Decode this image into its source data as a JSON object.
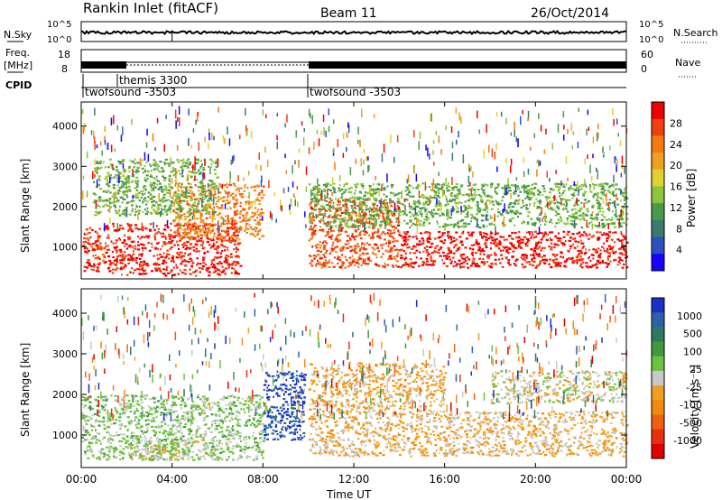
{
  "header": {
    "station": "Rankin Inlet (fitACF)",
    "beam": "Beam 11",
    "date": "26/Oct/2014"
  },
  "noise_panel": {
    "left_label": "N.Sky",
    "right_label": "N.Search",
    "left_ticks": [
      "10^5",
      "10^0"
    ],
    "right_ticks": [
      "10^5",
      "10^0"
    ]
  },
  "freq_panel": {
    "left_label_1": "Freq.",
    "left_label_2": "[MHz]",
    "left_ticks": [
      "18",
      "8"
    ],
    "right_label": "Nave",
    "right_ticks": [
      "60",
      "0"
    ]
  },
  "cpid_panel": {
    "label": "CPID",
    "segments": [
      {
        "name": "twofsound -3503",
        "start_hr": 0.0,
        "end_hr": 1.9
      },
      {
        "name": "themis 3300",
        "start_hr": 1.9,
        "end_hr": 10.0
      },
      {
        "name": "twofsound -3503",
        "start_hr": 10.0,
        "end_hr": 24.0
      }
    ]
  },
  "power_panel": {
    "ylabel": "Slant Range [km]",
    "yticks": [
      "1000",
      "2000",
      "3000",
      "4000"
    ],
    "colorbar_label": "Power [dB]",
    "colorbar_ticks": [
      "4",
      "8",
      "12",
      "16",
      "20",
      "24",
      "28"
    ],
    "colorbar_colors": [
      "#1a00ff",
      "#2f4fbf",
      "#3b7a70",
      "#4a9a4a",
      "#8cc43c",
      "#e0d030",
      "#f0a020",
      "#f27a10",
      "#f04010",
      "#ee0000"
    ]
  },
  "velocity_panel": {
    "ylabel": "Slant Range [km]",
    "yticks": [
      "1000",
      "2000",
      "3000",
      "4000"
    ],
    "colorbar_label": "Velocity [m s⁻¹]",
    "colorbar_ticks": [
      "1000",
      "500",
      "100",
      "25",
      "-25",
      "-100",
      "-500",
      "-1000"
    ],
    "colorbar_colors": [
      "#1a30c8",
      "#2e60a8",
      "#2e7a60",
      "#3f9a3f",
      "#6cc23c",
      "#c8c8c8",
      "#f0a020",
      "#f08a10",
      "#f06010",
      "#e83010",
      "#e00000"
    ]
  },
  "xaxis": {
    "label": "Time UT",
    "ticks": [
      "00:00",
      "04:00",
      "08:00",
      "12:00",
      "16:00",
      "20:00",
      "00:00"
    ]
  },
  "chart_data": {
    "type": "heatmap",
    "title": "Rankin Inlet (fitACF)",
    "subtitle": "Beam 11 — 26/Oct/2014",
    "x_label": "Time UT",
    "x_range_hours": [
      0,
      24
    ],
    "y_label": "Slant Range [km]",
    "y_range_km": [
      200,
      4600
    ],
    "panels": [
      {
        "name": "Power",
        "unit": "dB",
        "scale_range": [
          0,
          30
        ],
        "regions": [
          {
            "t0": 0.0,
            "t1": 1.0,
            "r0": 400,
            "r1": 1500,
            "value": 26
          },
          {
            "t0": 1.0,
            "t1": 7.0,
            "r0": 300,
            "r1": 1600,
            "value": 27
          },
          {
            "t0": 4.0,
            "t1": 8.0,
            "r0": 1200,
            "r1": 2600,
            "value": 22
          },
          {
            "t0": 10.0,
            "t1": 14.0,
            "r0": 500,
            "r1": 2200,
            "value": 25
          },
          {
            "t0": 14.0,
            "t1": 24.0,
            "r0": 500,
            "r1": 1400,
            "value": 28
          },
          {
            "t0": 0.5,
            "t1": 6.0,
            "r0": 1800,
            "r1": 3200,
            "value": 12
          },
          {
            "t0": 10.0,
            "t1": 24.0,
            "r0": 1500,
            "r1": 2600,
            "value": 12
          }
        ]
      },
      {
        "name": "Velocity",
        "unit": "m s-1",
        "scale_range": [
          -1000,
          1000
        ],
        "regions": [
          {
            "t0": 0.0,
            "t1": 8.0,
            "r0": 400,
            "r1": 2000,
            "value": 150
          },
          {
            "t0": 8.0,
            "t1": 9.8,
            "r0": 900,
            "r1": 2600,
            "value": 800
          },
          {
            "t0": 10.0,
            "t1": 16.0,
            "r0": 500,
            "r1": 2800,
            "value": -150
          },
          {
            "t0": 16.0,
            "t1": 24.0,
            "r0": 500,
            "r1": 1600,
            "value": -120
          },
          {
            "t0": 2.0,
            "t1": 6.0,
            "r0": 400,
            "r1": 900,
            "value": 0
          },
          {
            "t0": 18.0,
            "t1": 24.0,
            "r0": 1800,
            "r1": 2600,
            "value": 0
          }
        ]
      }
    ]
  }
}
